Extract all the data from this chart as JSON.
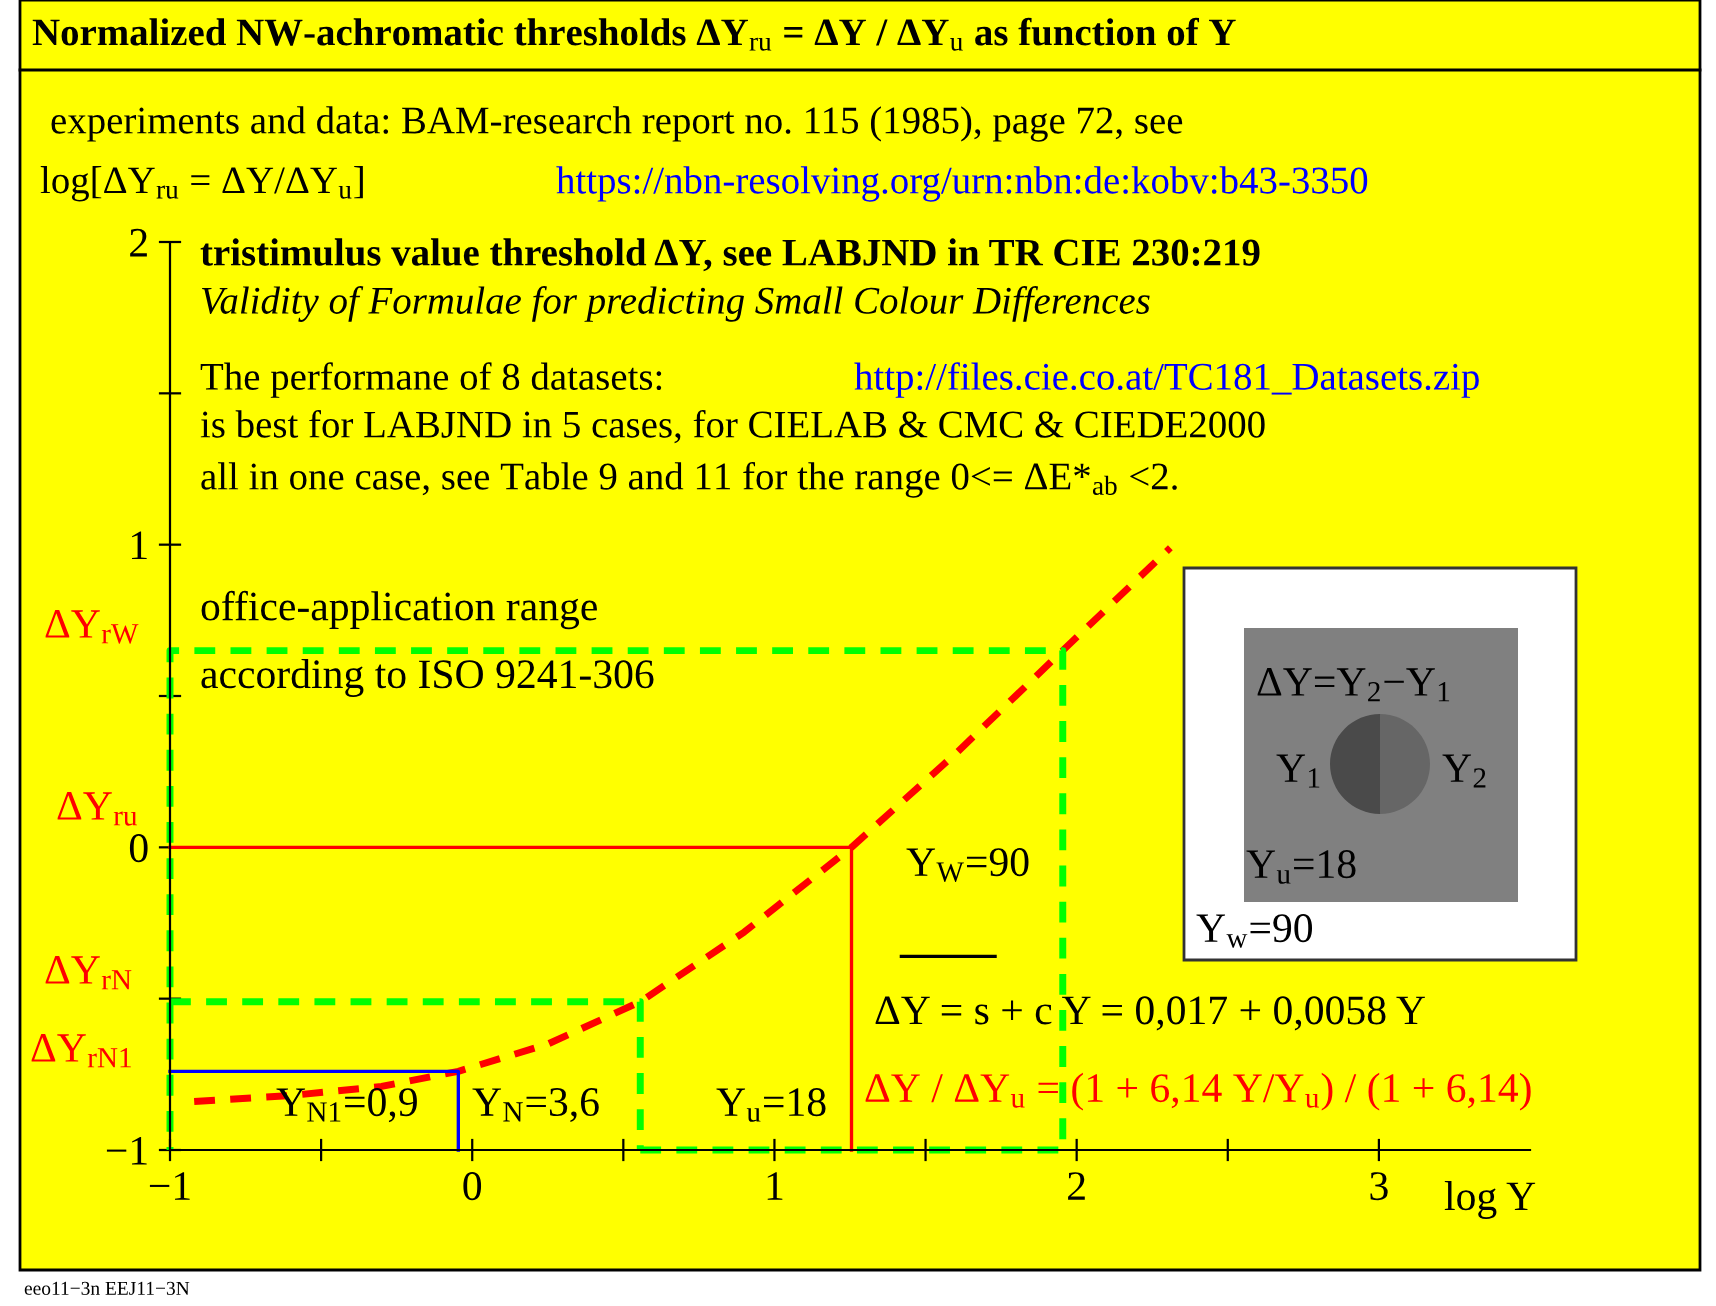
{
  "chart_data": {
    "type": "line",
    "title": "Normalized NW-achromatic thresholds ΔY$_{ru}$ = ΔY / ΔY$_{u}$ as function of Y",
    "xlabel": "log Y",
    "ylabel": "log[ΔY$_{ru}$ = ΔY/ΔY$_{u}$]",
    "xlim": [
      -1,
      3.5
    ],
    "ylim": [
      -1,
      2
    ],
    "xticks": [
      -1,
      {
        "value": -0.5,
        "label": null
      },
      0,
      {
        "value": 0.5,
        "label": null
      },
      1,
      {
        "value": 1.5,
        "label": null
      },
      2,
      {
        "value": 2.5,
        "label": null
      },
      3
    ],
    "yticks": [
      -1,
      {
        "value": -0.5,
        "label": null
      },
      0,
      {
        "value": 0.5,
        "label": null
      },
      1,
      {
        "value": 1.5,
        "label": null
      },
      2
    ],
    "grid": false,
    "legend": false,
    "series": [
      {
        "color": "#ff0000",
        "line_style": "dashed",
        "x": [
          -0.92,
          -0.6,
          -0.3,
          -0.046,
          0.25,
          0.556,
          0.9,
          1.255,
          1.6,
          1.954,
          2.31
        ],
        "values": [
          -0.84,
          -0.82,
          -0.79,
          -0.74,
          -0.65,
          -0.51,
          -0.28,
          0,
          0.31,
          0.65,
          0.99
        ]
      },
      {
        "color": "#ff0000",
        "line_style": "solid",
        "x": [
          -1,
          1.255,
          1.255
        ],
        "values": [
          0,
          0,
          -1
        ]
      },
      {
        "color": "#0000ff",
        "line_style": "solid",
        "x": [
          -1,
          -0.046,
          -0.046
        ],
        "values": [
          -0.74,
          -0.74,
          -1
        ]
      },
      {
        "color": "#00ff00",
        "line_style": "dashed",
        "x": [
          -1,
          0.556,
          0.556
        ],
        "values": [
          -0.51,
          -0.51,
          -1
        ]
      },
      {
        "color": "#00ff00",
        "line_style": "dashed",
        "x": [
          0.556,
          1.954,
          1.954,
          -1,
          -1
        ],
        "values": [
          -1,
          -1,
          0.65,
          0.65,
          -1
        ]
      },
      {
        "color": "#000000",
        "line_style": "solid",
        "x": [
          1.42,
          1.73
        ],
        "values": [
          -0.36,
          -0.36
        ]
      }
    ],
    "annotations": [
      "experiments and data: BAM-research report no. 115 (1985), page 72, see",
      "https://nbn-resolving.org/urn:nbn:de:kobv:b43-3350",
      "tristimulus value threshold ΔY, see LABJND in TR CIE 230:219",
      "Validity of Formulae for predicting Small Colour Differences",
      "The performane of 8 datasets:",
      "http://files.cie.co.at/TC181_Datasets.zip",
      "is best for LABJND in 5 cases, for CIELAB & CMC & CIEDE2000",
      "all in one case, see Table 9 and 11 for the range 0<= ΔE*$_{ab}$ <2.",
      "office-application range",
      "according to ISO 9241-306",
      "Y$_{W}$=90",
      "Y$_{N1}$=0,9",
      "Y$_{N}$=3,6",
      "Y$_{u}$=18",
      "ΔY = s + c Y = 0,017 + 0,0058 Y",
      "ΔY / ΔY$_{u}$ = (1 + 6,14 Y/Y$_{u}$) / (1 + 6,14)",
      "ΔY=Y$_{2}$−Y$_{1}$",
      "Y$_{1}$",
      "Y$_{2}$",
      "Y$_{u}$=18",
      "Y$_{w}$=90",
      "eeo11−3n EEJ11−3N",
      "ΔY$_{rW}$",
      "ΔY$_{ru}$",
      "ΔY$_{rN}$",
      "ΔY$_{rN1}$"
    ]
  }
}
